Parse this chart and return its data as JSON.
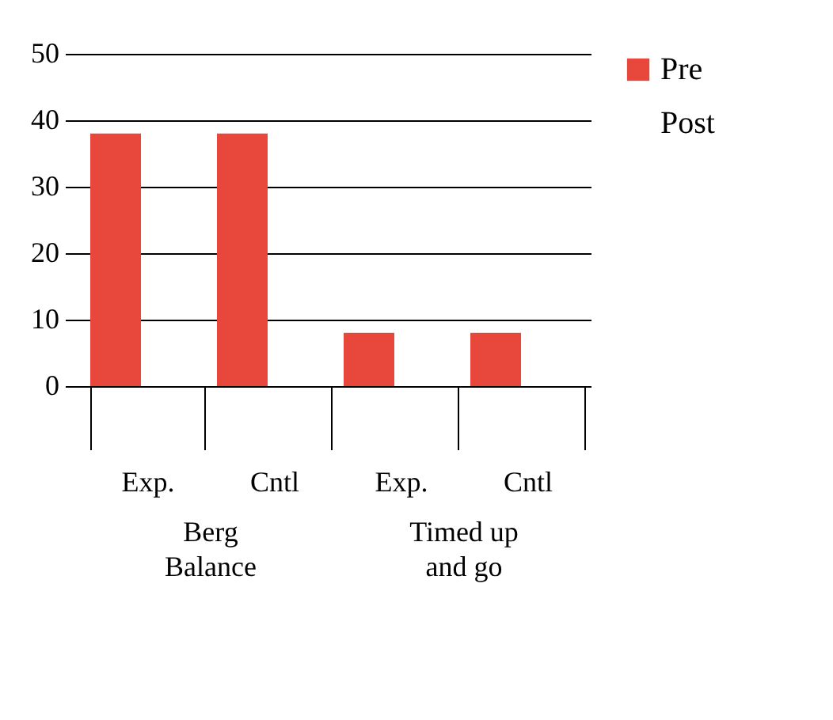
{
  "chart_data": {
    "type": "bar",
    "categories": [
      "Exp.",
      "Cntl",
      "Exp.",
      "Cntl"
    ],
    "ylim": [
      0,
      50
    ],
    "yticks": [
      0,
      10,
      20,
      30,
      40,
      50
    ],
    "grid": "y",
    "legend": "right",
    "annotations": [
      "Berg Balance",
      "Timed up and go"
    ],
    "series": [
      {
        "name": "Pre",
        "color": "#e8483c",
        "values": [
          38,
          38,
          8,
          8
        ]
      },
      {
        "name": "Post",
        "values": [
          null,
          null,
          null,
          null
        ]
      }
    ]
  }
}
